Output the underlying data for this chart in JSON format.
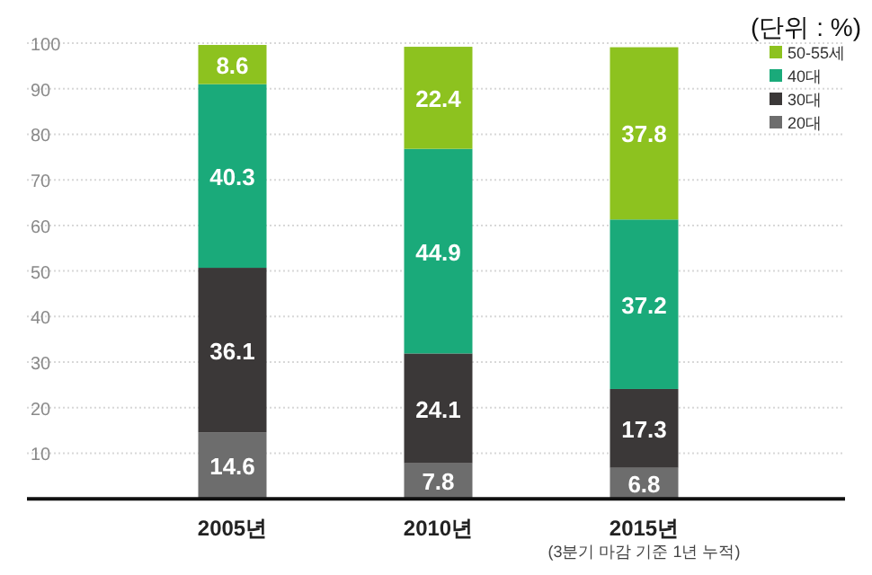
{
  "chart_data": {
    "type": "bar",
    "stacked": true,
    "ylabel": "(단위 : %)",
    "categories": [
      "2005년",
      "2010년",
      "2015년"
    ],
    "series": [
      {
        "name": "20대",
        "color": "#6d6d6d",
        "values": [
          14.6,
          7.8,
          6.8
        ]
      },
      {
        "name": "30대",
        "color": "#3b3838",
        "values": [
          36.1,
          24.1,
          17.3
        ]
      },
      {
        "name": "40대",
        "color": "#1aaa7a",
        "values": [
          40.3,
          44.9,
          37.2
        ]
      },
      {
        "name": "50-55세",
        "color": "#8dc21f",
        "values": [
          8.6,
          22.4,
          37.8
        ]
      }
    ],
    "ylim": [
      0,
      100
    ],
    "yticks": [
      10,
      20,
      30,
      40,
      50,
      60,
      70,
      80,
      90,
      100
    ],
    "grid": "y",
    "legend": "top right",
    "data_labels": true,
    "annotations": [
      "(3분기 마감 기준 1년 누적)"
    ]
  }
}
